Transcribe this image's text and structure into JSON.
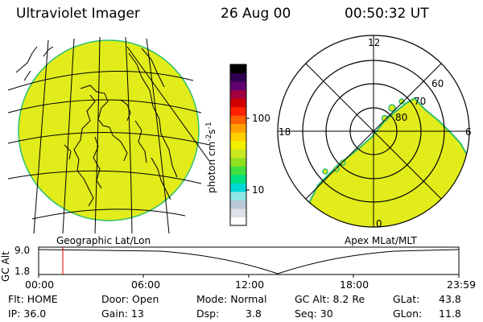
{
  "header": {
    "instrument": "Ultraviolet Imager",
    "date": "26 Aug 00",
    "time": "00:50:32 UT"
  },
  "left_panel": {
    "label": "Geographic Lat/Lon"
  },
  "right_panel": {
    "label": "Apex MLat/MLT",
    "mlt_labels": {
      "top": "12",
      "left": "18",
      "right": "6",
      "bottom": "0"
    },
    "lat_labels": [
      "60",
      "70",
      "80"
    ]
  },
  "colorbar": {
    "unit": "photon cm",
    "unit_exp1": "-2",
    "unit_mid": "s",
    "unit_exp2": "-1",
    "ticks": [
      "100",
      "10"
    ],
    "colors": [
      "#ffffff",
      "#e0e0e8",
      "#b8c8d8",
      "#8fe6e6",
      "#00d8d8",
      "#00e080",
      "#40e040",
      "#90e020",
      "#c8e820",
      "#f0f000",
      "#ffd000",
      "#ffa000",
      "#ff6000",
      "#ff2000",
      "#d00000",
      "#a00040",
      "#600070",
      "#300050",
      "#000000"
    ]
  },
  "timeline": {
    "axis_label": "GC Alt",
    "y_ticks": [
      "9.0",
      "1.8"
    ],
    "x_ticks": [
      "00:00",
      "06:00",
      "12:00",
      "18:00",
      "23:59"
    ],
    "marker_color": "#e00000"
  },
  "info": {
    "flt": "Flt: HOME",
    "ip": "IP: 36.0",
    "door": "Door: Open",
    "gain": "Gain: 13",
    "mode": "Mode: Normal",
    "dsp_label": "Dsp:",
    "dsp_value": "3.8",
    "gc_alt": "GC Alt: 8.2 Re",
    "seq": "Seq: 30",
    "glat_label": "GLat:",
    "glat_value": "43.8",
    "glon_label": "GLon:",
    "glon_value": "11.8"
  },
  "colors": {
    "aurora_fill": "#e2ec1a",
    "aurora_edge": "#2dbf70"
  }
}
